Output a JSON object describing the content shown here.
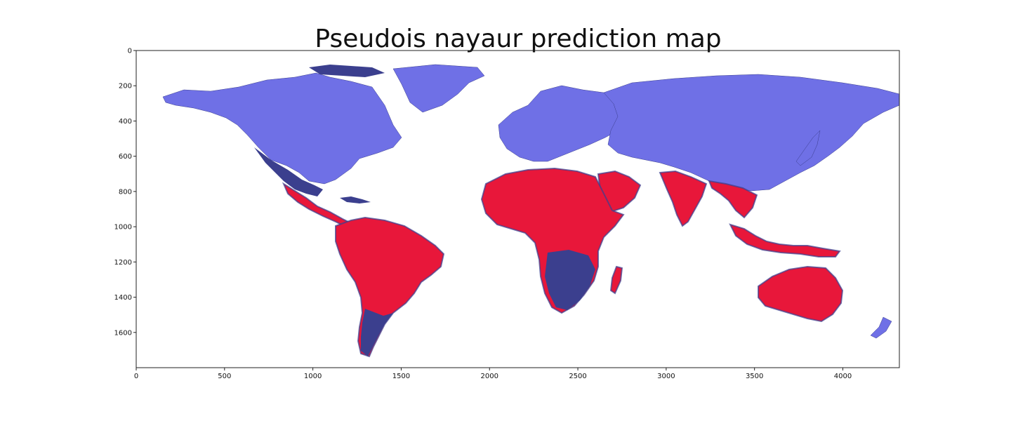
{
  "title": "Pseudois nayaur prediction map",
  "axes": {
    "x_ticks": [
      0,
      500,
      1000,
      1500,
      2000,
      2500,
      3000,
      3500,
      4000
    ],
    "y_ticks": [
      0,
      200,
      400,
      600,
      800,
      1000,
      1200,
      1400,
      1600
    ],
    "x_range": [
      0,
      4320
    ],
    "y_range": [
      0,
      1800
    ],
    "y_inverted": true
  },
  "colors": {
    "low": "#6f70e6",
    "mid": "#3b3f8e",
    "high": "#e8173a"
  }
}
